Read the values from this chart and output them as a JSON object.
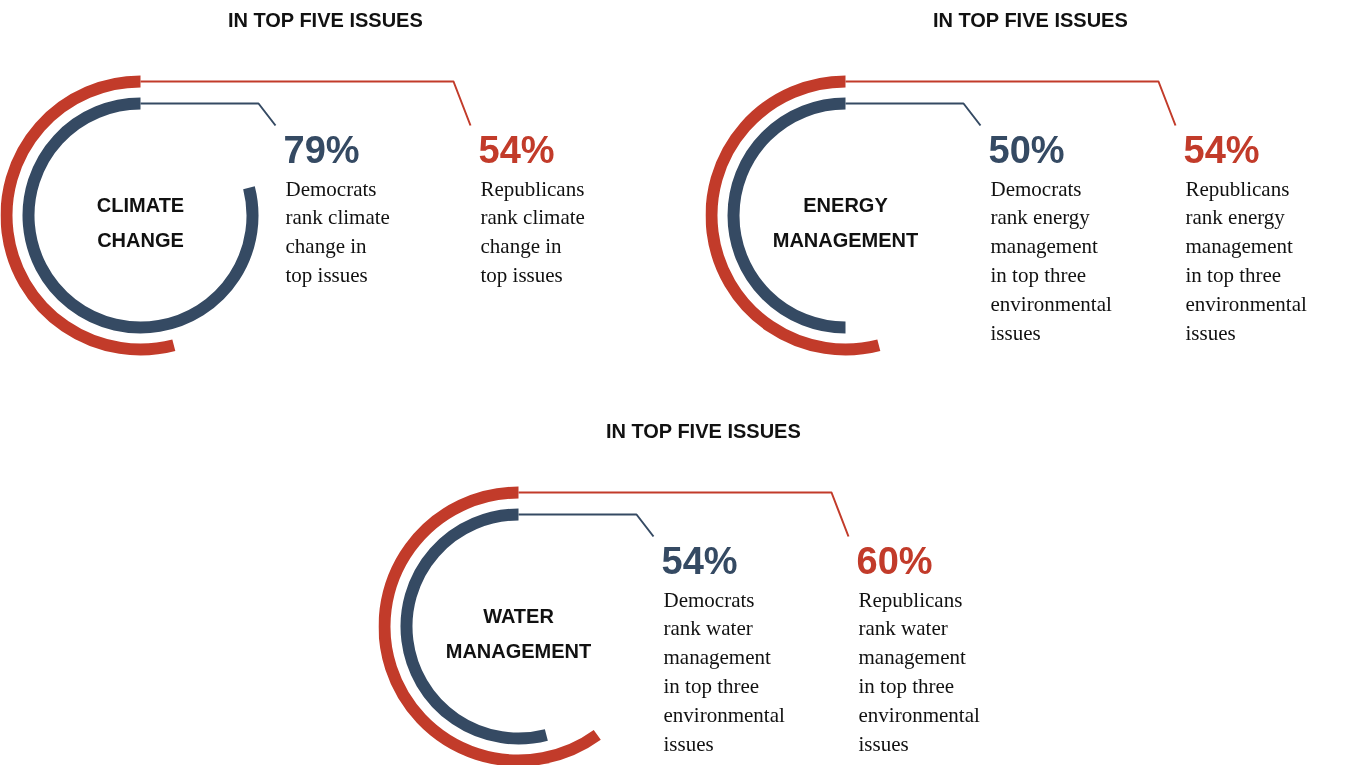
{
  "chart_data": [
    {
      "type": "other",
      "title": "IN TOP FIVE ISSUES",
      "categories": [
        "CLIMATE\nCHANGE"
      ],
      "series": [
        {
          "color": "#354a63",
          "values": [
            79
          ],
          "value_labels": [
            "79%"
          ]
        },
        {
          "color": "#c23b2a",
          "values": [
            54
          ],
          "value_labels": [
            "54%"
          ]
        }
      ],
      "annotations": [
        "Democrats\nrank climate\nchange in\ntop issues",
        "Republicans\nrank climate\nchange in\ntop issues"
      ]
    },
    {
      "type": "other",
      "title": "IN TOP FIVE ISSUES",
      "categories": [
        "ENERGY\nMANAGEMENT"
      ],
      "series": [
        {
          "color": "#354a63",
          "values": [
            50
          ],
          "value_labels": [
            "50%"
          ]
        },
        {
          "color": "#c23b2a",
          "values": [
            54
          ],
          "value_labels": [
            "54%"
          ]
        }
      ],
      "annotations": [
        "Democrats\nrank energy\nmanagement\nin top three\nenvironmental\nissues",
        "Republicans\nrank energy\nmanagement\nin top three\nenvironmental\nissues"
      ]
    },
    {
      "type": "other",
      "title": "IN TOP FIVE ISSUES",
      "categories": [
        "WATER\nMANAGEMENT"
      ],
      "series": [
        {
          "color": "#354a63",
          "values": [
            54
          ],
          "value_labels": [
            "54%"
          ]
        },
        {
          "color": "#c23b2a",
          "values": [
            60
          ],
          "value_labels": [
            "60%"
          ]
        }
      ],
      "annotations": [
        "Democrats\nrank water\nmanagement\nin top three\nenvironmental\nissues",
        "Republicans\nrank water\nmanagement\nin top three\nenvironmental\nissues"
      ]
    }
  ]
}
